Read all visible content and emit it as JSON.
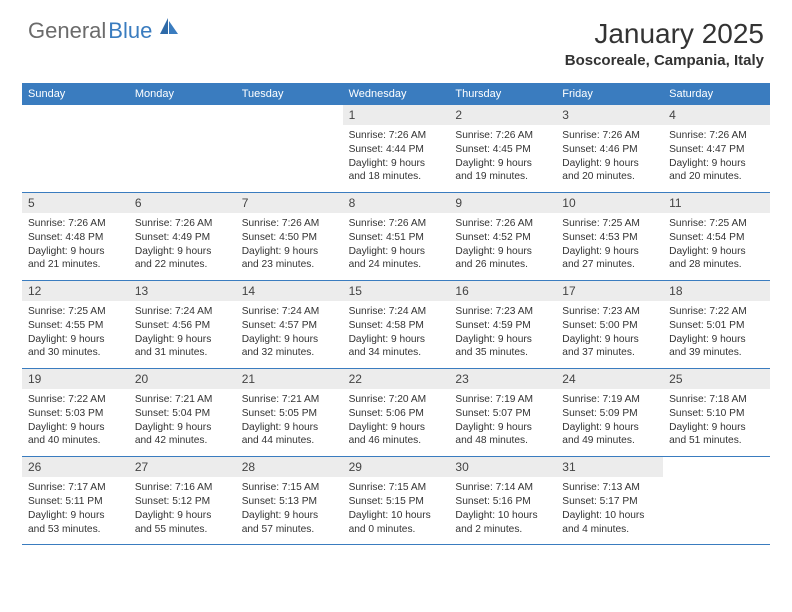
{
  "logo": {
    "part1": "General",
    "part2": "Blue"
  },
  "title": "January 2025",
  "location": "Boscoreale, Campania, Italy",
  "colors": {
    "header_bg": "#3a7cbf",
    "header_text": "#ffffff",
    "daynum_bg": "#ececec",
    "text": "#333333",
    "logo_gray": "#6b6b6b",
    "logo_blue": "#3a7cbf",
    "divider": "#3a7cbf"
  },
  "day_labels": [
    "Sunday",
    "Monday",
    "Tuesday",
    "Wednesday",
    "Thursday",
    "Friday",
    "Saturday"
  ],
  "weeks": [
    [
      null,
      null,
      null,
      {
        "d": "1",
        "sr": "7:26 AM",
        "ss": "4:44 PM",
        "dl": "9 hours and 18 minutes."
      },
      {
        "d": "2",
        "sr": "7:26 AM",
        "ss": "4:45 PM",
        "dl": "9 hours and 19 minutes."
      },
      {
        "d": "3",
        "sr": "7:26 AM",
        "ss": "4:46 PM",
        "dl": "9 hours and 20 minutes."
      },
      {
        "d": "4",
        "sr": "7:26 AM",
        "ss": "4:47 PM",
        "dl": "9 hours and 20 minutes."
      }
    ],
    [
      {
        "d": "5",
        "sr": "7:26 AM",
        "ss": "4:48 PM",
        "dl": "9 hours and 21 minutes."
      },
      {
        "d": "6",
        "sr": "7:26 AM",
        "ss": "4:49 PM",
        "dl": "9 hours and 22 minutes."
      },
      {
        "d": "7",
        "sr": "7:26 AM",
        "ss": "4:50 PM",
        "dl": "9 hours and 23 minutes."
      },
      {
        "d": "8",
        "sr": "7:26 AM",
        "ss": "4:51 PM",
        "dl": "9 hours and 24 minutes."
      },
      {
        "d": "9",
        "sr": "7:26 AM",
        "ss": "4:52 PM",
        "dl": "9 hours and 26 minutes."
      },
      {
        "d": "10",
        "sr": "7:25 AM",
        "ss": "4:53 PM",
        "dl": "9 hours and 27 minutes."
      },
      {
        "d": "11",
        "sr": "7:25 AM",
        "ss": "4:54 PM",
        "dl": "9 hours and 28 minutes."
      }
    ],
    [
      {
        "d": "12",
        "sr": "7:25 AM",
        "ss": "4:55 PM",
        "dl": "9 hours and 30 minutes."
      },
      {
        "d": "13",
        "sr": "7:24 AM",
        "ss": "4:56 PM",
        "dl": "9 hours and 31 minutes."
      },
      {
        "d": "14",
        "sr": "7:24 AM",
        "ss": "4:57 PM",
        "dl": "9 hours and 32 minutes."
      },
      {
        "d": "15",
        "sr": "7:24 AM",
        "ss": "4:58 PM",
        "dl": "9 hours and 34 minutes."
      },
      {
        "d": "16",
        "sr": "7:23 AM",
        "ss": "4:59 PM",
        "dl": "9 hours and 35 minutes."
      },
      {
        "d": "17",
        "sr": "7:23 AM",
        "ss": "5:00 PM",
        "dl": "9 hours and 37 minutes."
      },
      {
        "d": "18",
        "sr": "7:22 AM",
        "ss": "5:01 PM",
        "dl": "9 hours and 39 minutes."
      }
    ],
    [
      {
        "d": "19",
        "sr": "7:22 AM",
        "ss": "5:03 PM",
        "dl": "9 hours and 40 minutes."
      },
      {
        "d": "20",
        "sr": "7:21 AM",
        "ss": "5:04 PM",
        "dl": "9 hours and 42 minutes."
      },
      {
        "d": "21",
        "sr": "7:21 AM",
        "ss": "5:05 PM",
        "dl": "9 hours and 44 minutes."
      },
      {
        "d": "22",
        "sr": "7:20 AM",
        "ss": "5:06 PM",
        "dl": "9 hours and 46 minutes."
      },
      {
        "d": "23",
        "sr": "7:19 AM",
        "ss": "5:07 PM",
        "dl": "9 hours and 48 minutes."
      },
      {
        "d": "24",
        "sr": "7:19 AM",
        "ss": "5:09 PM",
        "dl": "9 hours and 49 minutes."
      },
      {
        "d": "25",
        "sr": "7:18 AM",
        "ss": "5:10 PM",
        "dl": "9 hours and 51 minutes."
      }
    ],
    [
      {
        "d": "26",
        "sr": "7:17 AM",
        "ss": "5:11 PM",
        "dl": "9 hours and 53 minutes."
      },
      {
        "d": "27",
        "sr": "7:16 AM",
        "ss": "5:12 PM",
        "dl": "9 hours and 55 minutes."
      },
      {
        "d": "28",
        "sr": "7:15 AM",
        "ss": "5:13 PM",
        "dl": "9 hours and 57 minutes."
      },
      {
        "d": "29",
        "sr": "7:15 AM",
        "ss": "5:15 PM",
        "dl": "10 hours and 0 minutes."
      },
      {
        "d": "30",
        "sr": "7:14 AM",
        "ss": "5:16 PM",
        "dl": "10 hours and 2 minutes."
      },
      {
        "d": "31",
        "sr": "7:13 AM",
        "ss": "5:17 PM",
        "dl": "10 hours and 4 minutes."
      },
      null
    ]
  ],
  "labels": {
    "sunrise": "Sunrise: ",
    "sunset": "Sunset: ",
    "daylight": "Daylight: "
  }
}
